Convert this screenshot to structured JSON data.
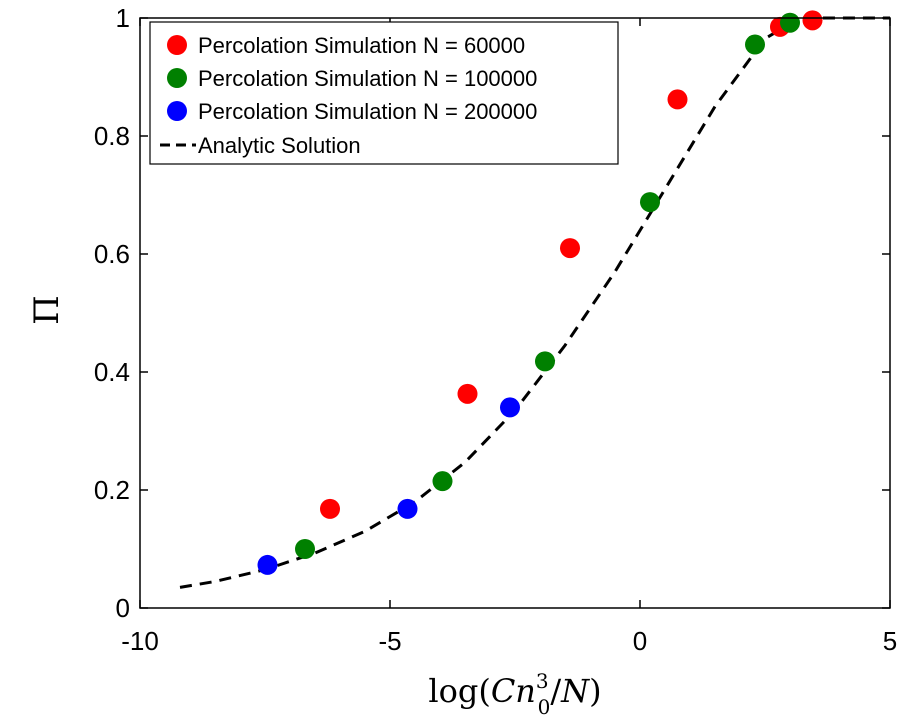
{
  "chart_data": {
    "type": "scatter",
    "title": "",
    "xlabel": {
      "prefix": "log(",
      "var1": "Cn",
      "superscript": "3",
      "subscript": "0",
      "slash": "/",
      "var2": "N",
      "suffix": ")"
    },
    "ylabel": "Π",
    "xlim": [
      -10,
      5
    ],
    "ylim": [
      0,
      1
    ],
    "xticks": [
      {
        "value": -10,
        "label": "-10"
      },
      {
        "value": -5,
        "label": "-5"
      },
      {
        "value": 0,
        "label": "0"
      },
      {
        "value": 5,
        "label": "5"
      }
    ],
    "yticks": [
      {
        "value": 0,
        "label": "0"
      },
      {
        "value": 0.2,
        "label": "0.2"
      },
      {
        "value": 0.4,
        "label": "0.4"
      },
      {
        "value": 0.6,
        "label": "0.6"
      },
      {
        "value": 0.8,
        "label": "0.8"
      },
      {
        "value": 1,
        "label": "1"
      }
    ],
    "legend_position": "top-left",
    "series": [
      {
        "name": "Percolation Simulation N = 60000",
        "color": "#ff0000",
        "marker": "circle",
        "points": [
          {
            "x": -6.2,
            "y": 0.168
          },
          {
            "x": -3.45,
            "y": 0.363
          },
          {
            "x": -1.4,
            "y": 0.61
          },
          {
            "x": 0.75,
            "y": 0.862
          },
          {
            "x": 2.8,
            "y": 0.985
          },
          {
            "x": 3.45,
            "y": 0.996
          }
        ]
      },
      {
        "name": "Percolation Simulation N = 100000",
        "color": "#008000",
        "marker": "circle",
        "points": [
          {
            "x": -6.7,
            "y": 0.1
          },
          {
            "x": -3.95,
            "y": 0.215
          },
          {
            "x": -1.9,
            "y": 0.418
          },
          {
            "x": 0.2,
            "y": 0.688
          },
          {
            "x": 2.3,
            "y": 0.955
          },
          {
            "x": 3.0,
            "y": 0.992
          }
        ]
      },
      {
        "name": "Percolation Simulation N = 200000",
        "color": "#0000ff",
        "marker": "circle",
        "points": [
          {
            "x": -7.45,
            "y": 0.073
          },
          {
            "x": -4.65,
            "y": 0.168
          },
          {
            "x": -2.6,
            "y": 0.34
          }
        ]
      },
      {
        "name": "Analytic Solution",
        "color": "#000000",
        "marker": "dashed-line",
        "points": [
          {
            "x": -9.2,
            "y": 0.035
          },
          {
            "x": -8.5,
            "y": 0.045
          },
          {
            "x": -7.5,
            "y": 0.065
          },
          {
            "x": -6.5,
            "y": 0.093
          },
          {
            "x": -5.5,
            "y": 0.13
          },
          {
            "x": -4.5,
            "y": 0.18
          },
          {
            "x": -3.5,
            "y": 0.247
          },
          {
            "x": -2.5,
            "y": 0.335
          },
          {
            "x": -1.5,
            "y": 0.445
          },
          {
            "x": -0.5,
            "y": 0.57
          },
          {
            "x": 0.5,
            "y": 0.71
          },
          {
            "x": 1.5,
            "y": 0.85
          },
          {
            "x": 2.5,
            "y": 0.965
          },
          {
            "x": 3.2,
            "y": 1.0
          },
          {
            "x": 5.0,
            "y": 1.0
          }
        ]
      }
    ]
  }
}
